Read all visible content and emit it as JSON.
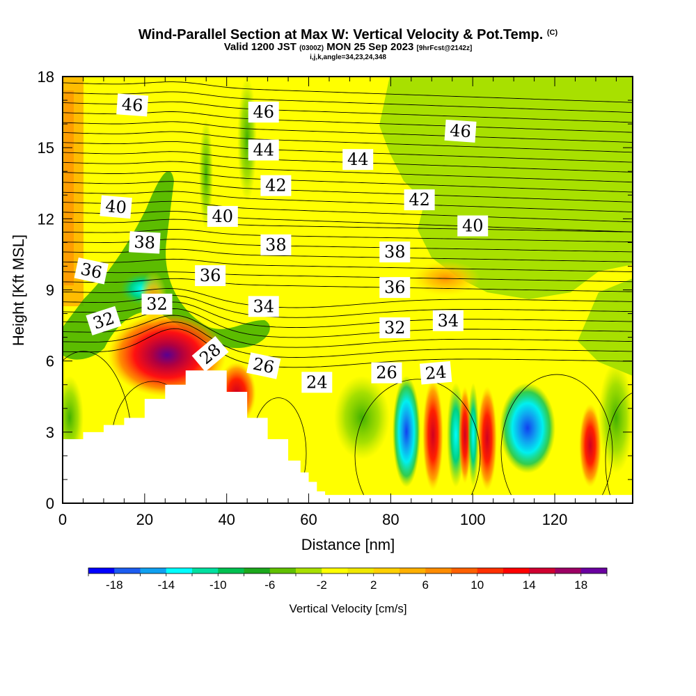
{
  "title": {
    "main": "Wind-Parallel Section at Max W: Vertical Velocity & Pot.Temp.",
    "copyright": "(C)",
    "valid_prefix": "Valid 1200 JST",
    "valid_zulu": "(0300Z)",
    "valid_date": "MON 25 Sep 2023",
    "forecast": "[9hrFcst@2142z]",
    "indices": "i,j,k,angle=34,23,24,348"
  },
  "chart_data": {
    "type": "heatmap",
    "xlabel": "Distance [nm]",
    "ylabel": "Height [Kft MSL]",
    "xlim": [
      0,
      139
    ],
    "ylim": [
      0,
      18
    ],
    "x_ticks": [
      0,
      20,
      40,
      60,
      80,
      100,
      120
    ],
    "y_ticks": [
      0,
      3,
      6,
      9,
      12,
      15,
      18
    ],
    "colorbar": {
      "title": "Vertical Velocity [cm/s]",
      "range": [
        -20,
        20
      ],
      "tick_labels": [
        "-18",
        "-14",
        "-10",
        "-6",
        "-2",
        "2",
        "6",
        "10",
        "14",
        "18"
      ],
      "tick_values": [
        -18,
        -14,
        -10,
        -6,
        -2,
        2,
        6,
        10,
        14,
        18
      ],
      "colors": [
        "#0000ff",
        "#1c5cf0",
        "#0fa0f0",
        "#00ffff",
        "#00e0a0",
        "#00c050",
        "#1ca81c",
        "#60c000",
        "#a8e000",
        "#ffff00",
        "#f0e800",
        "#ffd000",
        "#ffb000",
        "#ff8c00",
        "#ff6000",
        "#ff3000",
        "#ff0000",
        "#d00030",
        "#9c0064",
        "#6a00a0"
      ]
    },
    "terrain": [
      [
        0,
        2.7
      ],
      [
        5,
        3.0
      ],
      [
        10,
        3.3
      ],
      [
        15,
        3.6
      ],
      [
        20,
        4.4
      ],
      [
        25,
        5.0
      ],
      [
        30,
        5.6
      ],
      [
        37,
        5.6
      ],
      [
        40,
        4.7
      ],
      [
        45,
        3.6
      ],
      [
        50,
        2.7
      ],
      [
        55,
        1.8
      ],
      [
        58,
        1.3
      ],
      [
        60,
        0.9
      ],
      [
        62,
        0.5
      ],
      [
        64,
        0.35
      ],
      [
        139,
        0.35
      ]
    ],
    "theta_contour_labels": [
      {
        "value": "46",
        "x": 17,
        "y": 16.8,
        "angle": 4
      },
      {
        "value": "46",
        "x": 49,
        "y": 16.5,
        "angle": 0
      },
      {
        "value": "46",
        "x": 97,
        "y": 15.7,
        "angle": 4
      },
      {
        "value": "44",
        "x": 49,
        "y": 14.9,
        "angle": 0
      },
      {
        "value": "44",
        "x": 72,
        "y": 14.5,
        "angle": 0
      },
      {
        "value": "42",
        "x": 52,
        "y": 13.4,
        "angle": 0
      },
      {
        "value": "42",
        "x": 87,
        "y": 12.8,
        "angle": 0
      },
      {
        "value": "40",
        "x": 13,
        "y": 12.5,
        "angle": 5
      },
      {
        "value": "40",
        "x": 39,
        "y": 12.1,
        "angle": 0
      },
      {
        "value": "40",
        "x": 100,
        "y": 11.7,
        "angle": 0
      },
      {
        "value": "38",
        "x": 20,
        "y": 11.0,
        "angle": 3
      },
      {
        "value": "38",
        "x": 52,
        "y": 10.9,
        "angle": 0
      },
      {
        "value": "38",
        "x": 81,
        "y": 10.6,
        "angle": 0
      },
      {
        "value": "36",
        "x": 7,
        "y": 9.8,
        "angle": 12
      },
      {
        "value": "36",
        "x": 36,
        "y": 9.6,
        "angle": 0
      },
      {
        "value": "36",
        "x": 81,
        "y": 9.1,
        "angle": 0
      },
      {
        "value": "34",
        "x": 49,
        "y": 8.3,
        "angle": 0
      },
      {
        "value": "34",
        "x": 94,
        "y": 7.7,
        "angle": 0
      },
      {
        "value": "32",
        "x": 10,
        "y": 7.7,
        "angle": -18
      },
      {
        "value": "32",
        "x": 23,
        "y": 8.4,
        "angle": 0
      },
      {
        "value": "32",
        "x": 81,
        "y": 7.4,
        "angle": 0
      },
      {
        "value": "28",
        "x": 36,
        "y": 6.3,
        "angle": -40
      },
      {
        "value": "26",
        "x": 49,
        "y": 5.8,
        "angle": 12
      },
      {
        "value": "26",
        "x": 79,
        "y": 5.5,
        "angle": 0
      },
      {
        "value": "24",
        "x": 62,
        "y": 5.1,
        "angle": 0
      },
      {
        "value": "24",
        "x": 91,
        "y": 5.5,
        "angle": -5
      }
    ]
  }
}
